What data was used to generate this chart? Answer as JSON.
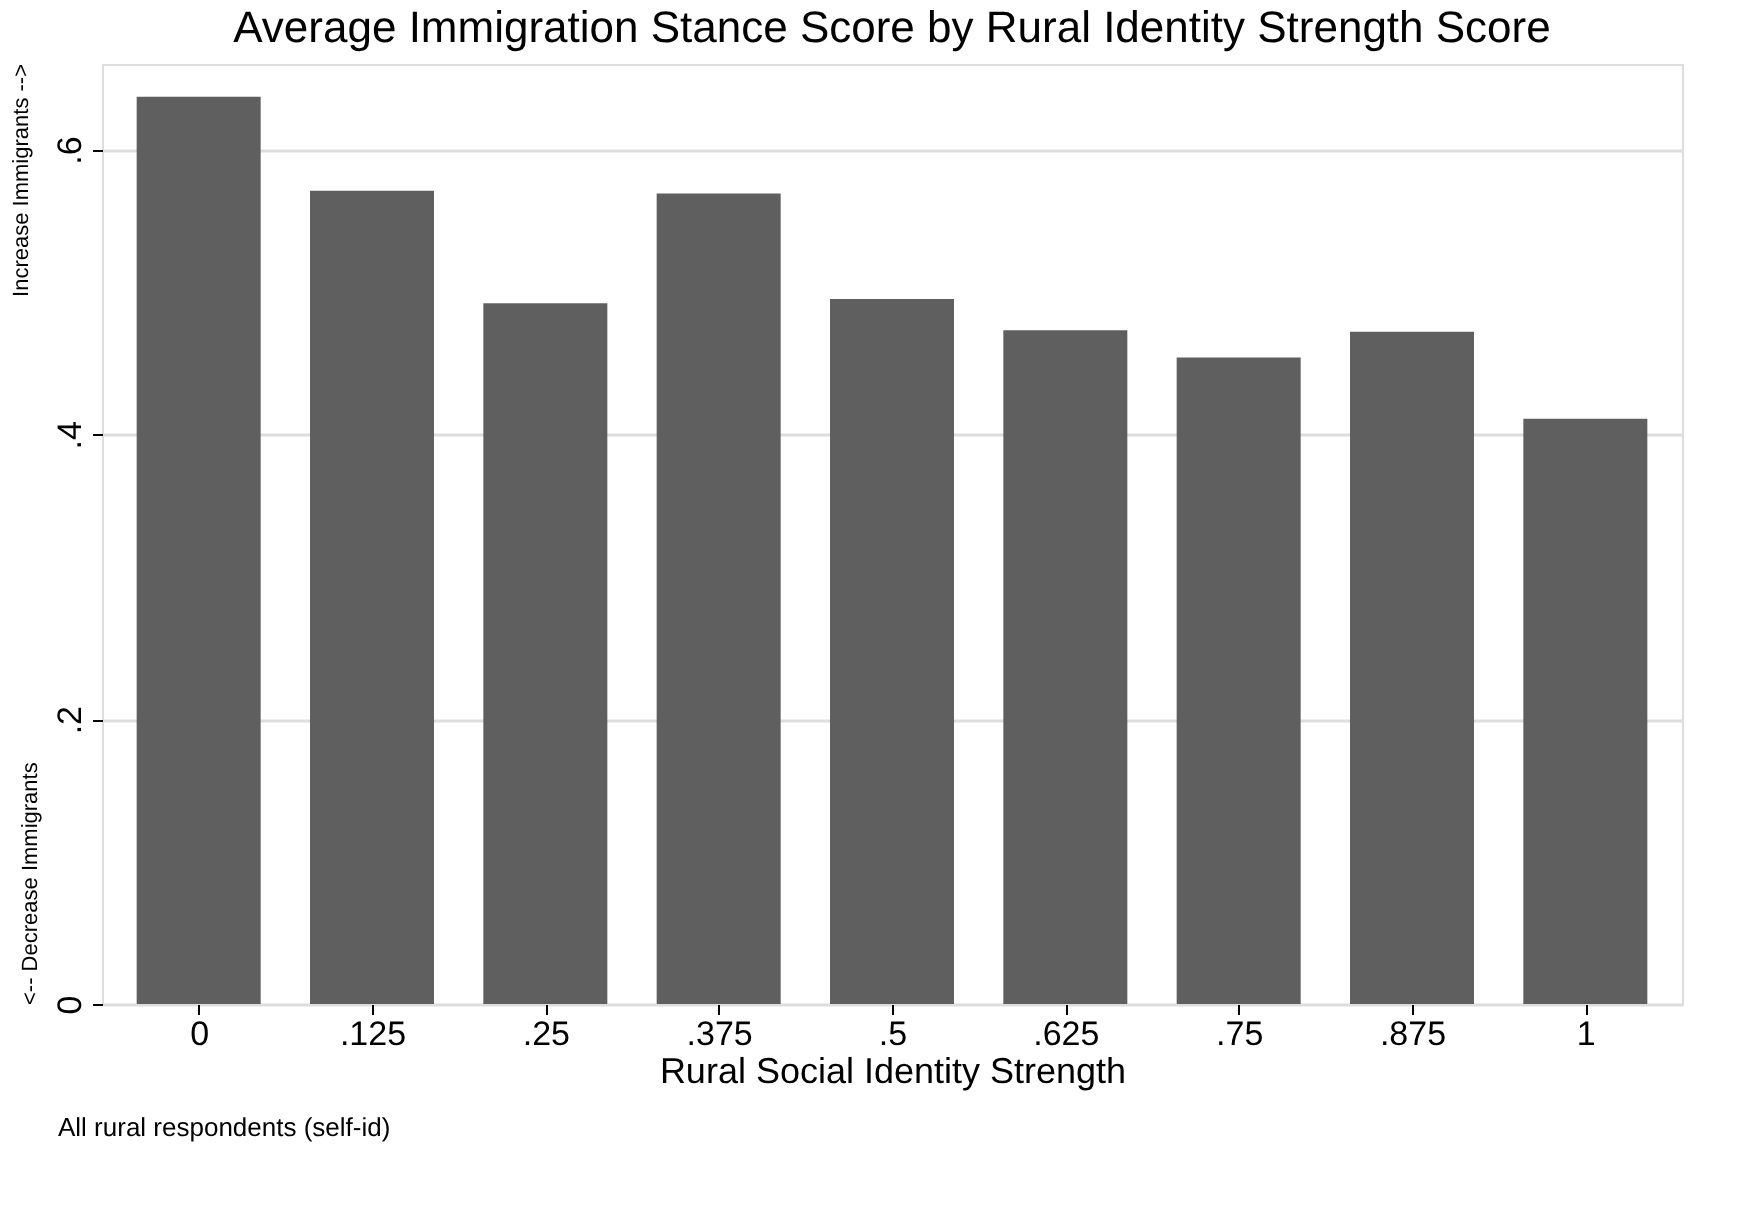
{
  "chart_data": {
    "type": "bar",
    "title": "Average Immigration Stance Score by Rural Identity Strength Score",
    "categories": [
      "0",
      ".125",
      ".25",
      ".375",
      ".5",
      ".625",
      ".75",
      ".875",
      "1"
    ],
    "values": [
      0.637,
      0.571,
      0.492,
      0.569,
      0.495,
      0.473,
      0.454,
      0.472,
      0.411
    ],
    "color": "#5f5f5f",
    "xlabel": "Rural Social Identity Strength",
    "ylabel": "<-- Decrease Immigrants",
    "annotations": [
      "Increase Immigrants -->",
      "All rural respondents (self-id)"
    ],
    "ylim": [
      0,
      0.66
    ],
    "yticks": [
      0,
      {
        "value": 0.2,
        "label": ".2"
      },
      {
        "value": 0.4,
        "label": ".4"
      },
      {
        "value": 0.6,
        "label": ".6"
      }
    ],
    "grid": "y"
  }
}
